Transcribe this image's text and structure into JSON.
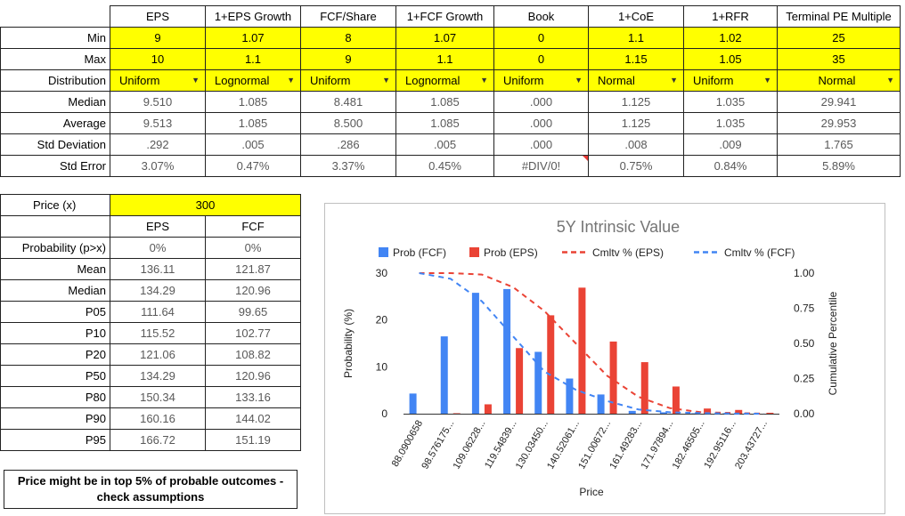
{
  "assumptions": {
    "columns": [
      "EPS",
      "1+EPS Growth",
      "FCF/Share",
      "1+FCF Growth",
      "Book",
      "1+CoE",
      "1+RFR",
      "Terminal PE Multiple"
    ],
    "min": {
      "label": "Min",
      "values": [
        "9",
        "1.07",
        "8",
        "1.07",
        "0",
        "1.1",
        "1.02",
        "25"
      ]
    },
    "max": {
      "label": "Max",
      "values": [
        "10",
        "1.1",
        "9",
        "1.1",
        "0",
        "1.15",
        "1.05",
        "35"
      ]
    },
    "distribution": {
      "label": "Distribution",
      "values": [
        "Uniform",
        "Lognormal",
        "Uniform",
        "Lognormal",
        "Uniform",
        "Normal",
        "Uniform",
        "Normal"
      ]
    },
    "median": {
      "label": "Median",
      "values": [
        "9.510",
        "1.085",
        "8.481",
        "1.085",
        ".000",
        "1.125",
        "1.035",
        "29.941"
      ]
    },
    "average": {
      "label": "Average",
      "values": [
        "9.513",
        "1.085",
        "8.500",
        "1.085",
        ".000",
        "1.125",
        "1.035",
        "29.953"
      ]
    },
    "std_dev": {
      "label": "Std Deviation",
      "values": [
        ".292",
        ".005",
        ".286",
        ".005",
        ".000",
        ".008",
        ".009",
        "1.765"
      ]
    },
    "std_err": {
      "label": "Std Error",
      "values": [
        "3.07%",
        "0.47%",
        "3.37%",
        "0.45%",
        "#DIV/0!",
        "0.75%",
        "0.84%",
        "5.89%"
      ]
    },
    "caret": "▼"
  },
  "price_table": {
    "price_label": "Price (x)",
    "price_value": "300",
    "col_eps": "EPS",
    "col_fcf": "FCF",
    "rows": [
      {
        "label": "Probability (p>x)",
        "eps": "0%",
        "fcf": "0%"
      },
      {
        "label": "Mean",
        "eps": "136.11",
        "fcf": "121.87"
      },
      {
        "label": "Median",
        "eps": "134.29",
        "fcf": "120.96"
      },
      {
        "label": "P05",
        "eps": "111.64",
        "fcf": "99.65"
      },
      {
        "label": "P10",
        "eps": "115.52",
        "fcf": "102.77"
      },
      {
        "label": "P20",
        "eps": "121.06",
        "fcf": "108.82"
      },
      {
        "label": "P50",
        "eps": "134.29",
        "fcf": "120.96"
      },
      {
        "label": "P80",
        "eps": "150.34",
        "fcf": "133.16"
      },
      {
        "label": "P90",
        "eps": "160.16",
        "fcf": "144.02"
      },
      {
        "label": "P95",
        "eps": "166.72",
        "fcf": "151.19"
      }
    ]
  },
  "note": "Price might be in top 5% of probable outcomes - check assumptions",
  "chart_data": {
    "type": "bar",
    "title": "5Y Intrinsic Value",
    "xlabel": "Price",
    "ylabel": "Probability (%)",
    "y2label": "Cumulative Percentile",
    "ylim": [
      0,
      30
    ],
    "y2lim": [
      0,
      1
    ],
    "yticks": [
      "0",
      "10",
      "20",
      "30"
    ],
    "y2ticks": [
      "0.00",
      "0.25",
      "0.50",
      "0.75",
      "1.00"
    ],
    "grid": false,
    "legend_position": "top",
    "categories": [
      "88.0900658",
      "98.576175...",
      "109.06228...",
      "119.54839...",
      "130.03450...",
      "140.52061...",
      "151.00672...",
      "161.49283...",
      "171.97894...",
      "182.46505...",
      "192.95116...",
      "203.43727..."
    ],
    "series": [
      {
        "name": "Prob (FCF)",
        "kind": "bar",
        "color": "#4285f4",
        "values": [
          4.3,
          16.5,
          25.8,
          26.6,
          13.2,
          7.5,
          4.1,
          0.6,
          0.3,
          0.1,
          0.1,
          0.0
        ]
      },
      {
        "name": "Prob (EPS)",
        "kind": "bar",
        "color": "#ea4335",
        "values": [
          0.0,
          0.1,
          2.0,
          14.0,
          21.0,
          26.9,
          15.4,
          11.0,
          5.8,
          1.1,
          0.8,
          0.2
        ]
      },
      {
        "name": "Cmltv % (EPS)",
        "kind": "line-dashed",
        "axis": "right",
        "color": "#ea4335",
        "values": [
          1.0,
          1.0,
          0.99,
          0.9,
          0.73,
          0.5,
          0.27,
          0.12,
          0.04,
          0.01,
          0.005,
          0.0
        ]
      },
      {
        "name": "Cmltv % (FCF)",
        "kind": "line-dashed",
        "axis": "right",
        "color": "#4285f4",
        "values": [
          1.0,
          0.96,
          0.8,
          0.55,
          0.3,
          0.17,
          0.09,
          0.03,
          0.01,
          0.004,
          0.001,
          0.0
        ]
      }
    ]
  }
}
